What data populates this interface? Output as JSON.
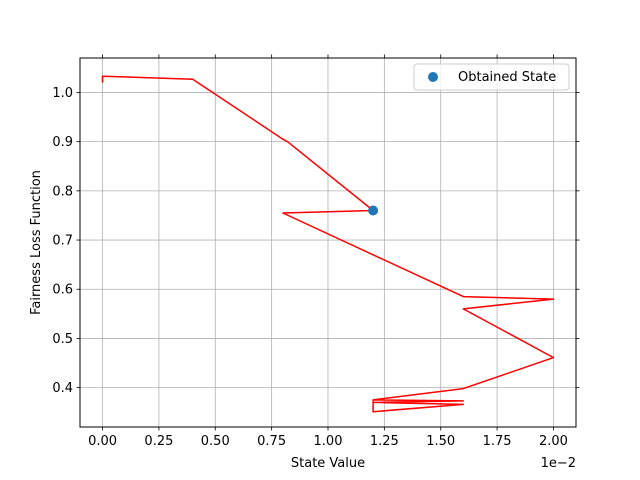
{
  "chart_data": {
    "type": "line",
    "title": "",
    "xlabel": "State Value",
    "ylabel": "Fairness Loss Function",
    "x_offset_label": "1e−2",
    "xlim": [
      -0.1,
      2.1
    ],
    "ylim": [
      0.32,
      1.07
    ],
    "xticks": [
      0.0,
      0.25,
      0.5,
      0.75,
      1.0,
      1.25,
      1.5,
      1.75,
      2.0
    ],
    "xtick_labels": [
      "0.00",
      "0.25",
      "0.50",
      "0.75",
      "1.00",
      "1.25",
      "1.50",
      "1.75",
      "2.00"
    ],
    "yticks": [
      0.4,
      0.5,
      0.6,
      0.7,
      0.8,
      0.9,
      1.0
    ],
    "ytick_labels": [
      "0.4",
      "0.5",
      "0.6",
      "0.7",
      "0.8",
      "0.9",
      "1.0"
    ],
    "grid": true,
    "legend_position": "top-right",
    "legend": [
      {
        "label": "Obtained State",
        "marker": "circle"
      }
    ],
    "series": [
      {
        "type": "line",
        "color": "#ff0000",
        "x": [
          0.0,
          0.0,
          0.4,
          0.8,
          0.82,
          1.2,
          0.8,
          1.2,
          1.6,
          2.0,
          1.6,
          2.0,
          1.6,
          1.2,
          1.2,
          1.6,
          1.2,
          1.6,
          1.2
        ],
        "y": [
          1.02,
          1.033,
          1.027,
          0.905,
          0.9,
          0.76,
          0.755,
          0.67,
          0.585,
          0.58,
          0.56,
          0.461,
          0.398,
          0.375,
          0.351,
          0.366,
          0.37,
          0.373,
          0.375
        ]
      },
      {
        "type": "scatter",
        "color": "#1f77b4",
        "x": [
          1.2
        ],
        "y": [
          0.76
        ]
      }
    ]
  }
}
